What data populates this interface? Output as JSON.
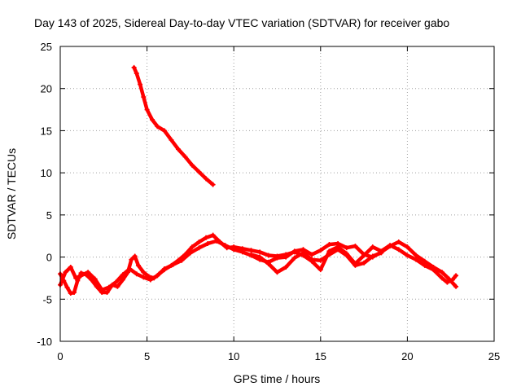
{
  "chart_data": {
    "type": "scatter",
    "title": "Day 143 of 2025, Sidereal Day-to-day VTEC variation (SDTVAR) for receiver gabo",
    "xlabel": "GPS time / hours",
    "ylabel": "SDTVAR / TECUs",
    "xlim": [
      0,
      25
    ],
    "ylim": [
      -10,
      25
    ],
    "xticks": [
      0,
      5,
      10,
      15,
      20,
      25
    ],
    "yticks": [
      -10,
      -5,
      0,
      5,
      10,
      15,
      20,
      25
    ],
    "grid": true,
    "color": "#ff0000",
    "series": [
      {
        "name": "segment-1",
        "x": [
          4.25,
          4.4,
          4.6,
          4.8,
          5.0,
          5.3,
          5.6,
          6.0,
          6.4,
          6.8,
          7.2,
          7.6,
          8.0,
          8.4,
          8.8
        ],
        "y": [
          22.5,
          21.8,
          20.5,
          19.0,
          17.5,
          16.3,
          15.5,
          15.0,
          13.9,
          12.8,
          11.9,
          10.9,
          10.1,
          9.3,
          8.6
        ]
      },
      {
        "name": "segment-2",
        "x": [
          0.0,
          0.2,
          0.4,
          0.6,
          0.8,
          1.0,
          1.2,
          1.5,
          1.8,
          2.1,
          2.4,
          2.7,
          3.0,
          3.3,
          3.6,
          3.9,
          4.1,
          4.3,
          4.5,
          4.8,
          5.1,
          5.4,
          5.7,
          6.0,
          6.4,
          6.8,
          7.2,
          7.6,
          8.0,
          8.4,
          8.8,
          9.2,
          9.6,
          10.0,
          10.5,
          11.0,
          11.5,
          12.0,
          12.5,
          13.0,
          13.5,
          14.0,
          14.5,
          15.0,
          15.5,
          16.0,
          16.5,
          17.0,
          17.5,
          18.0,
          18.5,
          19.0,
          19.5,
          20.0,
          20.5,
          21.0,
          21.5,
          22.0,
          22.3,
          22.6,
          22.8
        ],
        "y": [
          -2.0,
          -2.8,
          -3.6,
          -4.3,
          -4.2,
          -2.8,
          -1.9,
          -2.1,
          -2.7,
          -3.5,
          -4.2,
          -4.2,
          -3.3,
          -3.5,
          -2.7,
          -1.8,
          -0.3,
          0.1,
          -1.0,
          -1.8,
          -2.3,
          -2.5,
          -2.0,
          -1.5,
          -1.0,
          -0.4,
          0.3,
          1.2,
          1.8,
          2.3,
          2.6,
          1.8,
          1.1,
          1.2,
          1.0,
          0.8,
          0.6,
          0.2,
          0.1,
          0.3,
          0.6,
          0.2,
          -0.5,
          -1.5,
          0.7,
          1.2,
          0.4,
          -0.8,
          0.2,
          1.2,
          0.7,
          1.4,
          0.9,
          0.2,
          -0.3,
          -1.0,
          -1.5,
          -2.5,
          -3.0,
          -2.7,
          -2.2
        ]
      },
      {
        "name": "segment-3",
        "x": [
          0.0,
          0.3,
          0.6,
          0.9,
          1.2,
          1.6,
          2.0,
          2.4,
          2.8,
          3.2,
          3.6,
          4.0,
          4.4,
          4.8,
          5.2,
          5.6,
          6.0,
          6.5,
          7.0,
          7.5,
          8.0,
          8.5,
          9.0,
          9.5,
          10.0,
          10.5,
          11.0,
          11.5,
          12.0,
          12.5,
          13.0,
          13.5,
          14.0,
          14.5,
          15.0,
          15.5,
          16.0,
          16.5,
          17.0,
          17.5,
          18.0,
          18.5,
          19.0,
          19.5,
          20.0,
          20.5,
          21.0,
          21.5,
          22.0,
          22.4,
          22.8
        ],
        "y": [
          -3.3,
          -1.8,
          -1.2,
          -2.5,
          -2.2,
          -1.8,
          -2.6,
          -3.9,
          -3.6,
          -3.0,
          -2.1,
          -1.4,
          -2.0,
          -2.4,
          -2.7,
          -2.2,
          -1.4,
          -0.9,
          -0.4,
          0.5,
          1.1,
          1.6,
          1.9,
          1.4,
          0.9,
          0.6,
          0.2,
          -0.3,
          -0.6,
          -0.1,
          0.0,
          0.7,
          0.9,
          0.3,
          0.8,
          1.5,
          1.6,
          1.1,
          1.3,
          0.3,
          0.0,
          0.6,
          1.3,
          1.8,
          1.2,
          0.2,
          -0.5,
          -1.2,
          -1.8,
          -2.6,
          -3.5
        ]
      },
      {
        "name": "segment-4",
        "x": [
          11.0,
          11.5,
          12.0,
          12.5,
          13.0,
          13.5,
          14.0,
          14.5,
          15.0,
          15.5,
          16.0,
          16.5,
          17.0,
          17.5,
          18.0,
          18.5
        ],
        "y": [
          0.3,
          0.0,
          -0.8,
          -1.8,
          -1.2,
          -0.1,
          0.5,
          -0.3,
          -0.4,
          0.3,
          0.9,
          0.2,
          -1.0,
          -0.7,
          0.1,
          0.5
        ]
      }
    ]
  }
}
